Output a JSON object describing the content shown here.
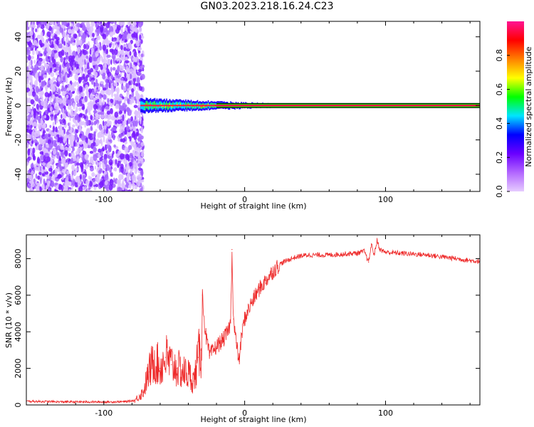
{
  "figure": {
    "title": "GN03.2023.218.16.24.C23"
  },
  "colors": {
    "snr_line": "#ee2a2a",
    "signal_core": "#ff1744",
    "frame": "#000000"
  },
  "chart_data": [
    {
      "type": "heatmap",
      "panel": "spectrogram",
      "xlabel": "Height of straight line (km)",
      "ylabel": "Frequency (Hz)",
      "xlim": [
        -155,
        167
      ],
      "ylim": [
        -50,
        49
      ],
      "xticks": [
        -100,
        0,
        100
      ],
      "yticks": [
        -40,
        -20,
        0,
        20,
        40
      ],
      "colorbar": {
        "label": "Normalized spectral amplitude",
        "range": [
          0,
          1
        ],
        "ticks": [
          0.0,
          0.2,
          0.4,
          0.6,
          0.8
        ],
        "tick_labels": [
          "0.0",
          "0.2",
          "0.4",
          "0.6",
          "0.8"
        ],
        "colormap": [
          "#e6ccff",
          "#b266ff",
          "#6a00ff",
          "#0000ff",
          "#00e5ff",
          "#00ff00",
          "#ffff00",
          "#ff8000",
          "#ff0000",
          "#ff1493"
        ]
      },
      "features": {
        "noise_region_x": [
          -155,
          -72
        ],
        "noise_amplitude": 0.2,
        "signal_onset_x": -74,
        "signal_frequency_hz": 0,
        "signal_band_hz": [
          -4,
          5
        ],
        "signal_steady_amplitude": 0.9
      }
    },
    {
      "type": "line",
      "panel": "snr",
      "xlabel": "Height of straight line (km)",
      "ylabel": "SNR (10 * v/v)",
      "xlim": [
        -155,
        167
      ],
      "ylim": [
        0,
        9300
      ],
      "xticks": [
        -100,
        0,
        100
      ],
      "yticks": [
        0,
        2000,
        4000,
        6000,
        8000
      ],
      "series": [
        {
          "x": [
            -155,
            -130,
            -100,
            -85,
            -78,
            -72,
            -68,
            -64,
            -60,
            -56,
            -52,
            -48,
            -44,
            -40,
            -36,
            -33,
            -31,
            -30,
            -28,
            -25,
            -20,
            -15,
            -12,
            -10,
            -9,
            -8,
            -6,
            -4,
            -2,
            0,
            2,
            5,
            10,
            15,
            20,
            25,
            30,
            35,
            40,
            45,
            50,
            60,
            70,
            80,
            85,
            88,
            90,
            92,
            94,
            96,
            100,
            110,
            120,
            130,
            140,
            150,
            160,
            167
          ],
          "y": [
            200,
            170,
            160,
            180,
            250,
            700,
            1800,
            2500,
            2000,
            2600,
            2200,
            2000,
            1800,
            1700,
            1300,
            2600,
            3000,
            6000,
            4000,
            2700,
            3200,
            3600,
            4000,
            4500,
            8500,
            4700,
            3400,
            2400,
            3900,
            4700,
            5100,
            5600,
            6300,
            6800,
            7300,
            7700,
            7900,
            8050,
            8150,
            8200,
            8200,
            8200,
            8250,
            8300,
            8400,
            7800,
            8800,
            8200,
            9000,
            8500,
            8350,
            8300,
            8250,
            8200,
            8100,
            8000,
            7900,
            7850
          ]
        }
      ]
    }
  ]
}
